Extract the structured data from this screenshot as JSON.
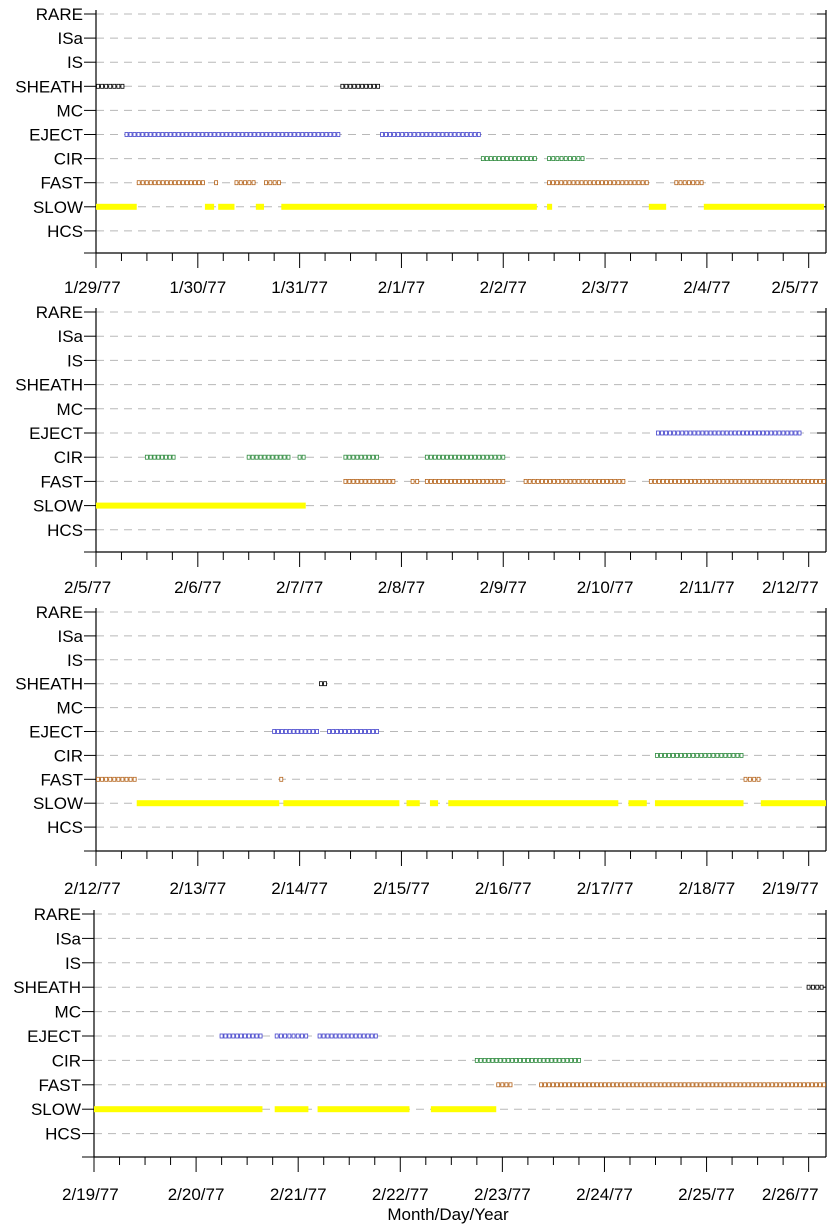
{
  "chart_data": {
    "type": "scatter",
    "category_axis": [
      "RARE",
      "ISa",
      "IS",
      "SHEATH",
      "MC",
      "EJECT",
      "CIR",
      "FAST",
      "SLOW",
      "HCS"
    ],
    "xlabel": "Month/Day/Year",
    "grid": "dashed horizontal",
    "colors": {
      "SLOW": "#ffff00",
      "FAST": "#b5651d",
      "CIR": "#2e8b3e",
      "EJECT": "#4444cc",
      "SHEATH": "#000000"
    },
    "panels": [
      {
        "tick_labels": [
          "1/29/77",
          "1/30/77",
          "1/31/77",
          "2/1/77",
          "2/2/77",
          "2/3/77",
          "2/4/77",
          "2/5/77"
        ],
        "series": [
          {
            "category": "SHEATH",
            "intervals": [
              [
                0.0,
                0.28
              ],
              [
                2.4,
                2.79
              ]
            ]
          },
          {
            "category": "EJECT",
            "intervals": [
              [
                0.28,
                2.4
              ],
              [
                2.79,
                3.78
              ]
            ]
          },
          {
            "category": "CIR",
            "intervals": [
              [
                3.78,
                4.33
              ],
              [
                4.43,
                4.8
              ]
            ]
          },
          {
            "category": "FAST",
            "intervals": [
              [
                0.4,
                1.07
              ],
              [
                1.16,
                1.2
              ],
              [
                1.36,
                1.57
              ],
              [
                1.65,
                1.82
              ],
              [
                4.43,
                5.43
              ],
              [
                5.68,
                5.97
              ]
            ]
          },
          {
            "category": "SLOW",
            "intervals": [
              [
                0.0,
                0.4
              ],
              [
                1.07,
                1.16
              ],
              [
                1.2,
                1.36
              ],
              [
                1.57,
                1.65
              ],
              [
                1.82,
                4.33
              ],
              [
                4.43,
                4.48
              ],
              [
                5.43,
                5.6
              ],
              [
                5.97,
                7.15
              ]
            ]
          }
        ]
      },
      {
        "tick_labels": [
          "2/5/77",
          "2/6/77",
          "2/7/77",
          "2/8/77",
          "2/9/77",
          "2/10/77",
          "2/11/77",
          "2/12/77"
        ],
        "series": [
          {
            "category": "EJECT",
            "intervals": [
              [
                5.5,
                6.93
              ]
            ]
          },
          {
            "category": "CIR",
            "intervals": [
              [
                0.48,
                0.78
              ],
              [
                1.48,
                1.91
              ],
              [
                1.98,
                2.06
              ],
              [
                2.43,
                2.78
              ],
              [
                3.23,
                4.02
              ]
            ]
          },
          {
            "category": "FAST",
            "intervals": [
              [
                2.43,
                2.94
              ],
              [
                3.09,
                3.18
              ],
              [
                3.23,
                4.02
              ],
              [
                4.2,
                5.2
              ],
              [
                5.43,
                7.17
              ]
            ]
          },
          {
            "category": "SLOW",
            "intervals": [
              [
                0.0,
                2.06
              ]
            ]
          }
        ]
      },
      {
        "tick_labels": [
          "2/12/77",
          "2/13/77",
          "2/14/77",
          "2/15/77",
          "2/16/77",
          "2/17/77",
          "2/18/77",
          "2/19/77"
        ],
        "series": [
          {
            "category": "SHEATH",
            "intervals": [
              [
                2.19,
                2.27
              ]
            ]
          },
          {
            "category": "EJECT",
            "intervals": [
              [
                1.73,
                2.19
              ],
              [
                2.27,
                2.78
              ]
            ]
          },
          {
            "category": "CIR",
            "intervals": [
              [
                5.49,
                6.36
              ]
            ]
          },
          {
            "category": "FAST",
            "intervals": [
              [
                0.0,
                0.4
              ],
              [
                1.8,
                1.84
              ],
              [
                6.36,
                6.53
              ]
            ]
          },
          {
            "category": "SLOW",
            "intervals": [
              [
                0.4,
                1.8
              ],
              [
                1.84,
                2.98
              ],
              [
                3.05,
                3.18
              ],
              [
                3.28,
                3.36
              ],
              [
                3.46,
                5.13
              ],
              [
                5.23,
                5.41
              ],
              [
                5.49,
                6.36
              ],
              [
                6.53,
                7.17
              ]
            ]
          }
        ]
      },
      {
        "tick_labels": [
          "2/19/77",
          "2/20/77",
          "2/21/77",
          "2/22/77",
          "2/23/77",
          "2/24/77",
          "2/25/77",
          "2/26/77"
        ],
        "series": [
          {
            "category": "SHEATH",
            "intervals": [
              [
                6.98,
                7.15
              ]
            ]
          },
          {
            "category": "EJECT",
            "intervals": [
              [
                1.23,
                1.65
              ],
              [
                1.77,
                2.1
              ],
              [
                2.19,
                2.78
              ]
            ]
          },
          {
            "category": "CIR",
            "intervals": [
              [
                3.73,
                4.77
              ]
            ]
          },
          {
            "category": "FAST",
            "intervals": [
              [
                3.94,
                4.1
              ],
              [
                4.36,
                7.17
              ]
            ]
          },
          {
            "category": "SLOW",
            "intervals": [
              [
                0.0,
                1.65
              ],
              [
                1.77,
                2.1
              ],
              [
                2.19,
                3.09
              ],
              [
                3.3,
                3.94
              ]
            ]
          }
        ]
      }
    ]
  }
}
